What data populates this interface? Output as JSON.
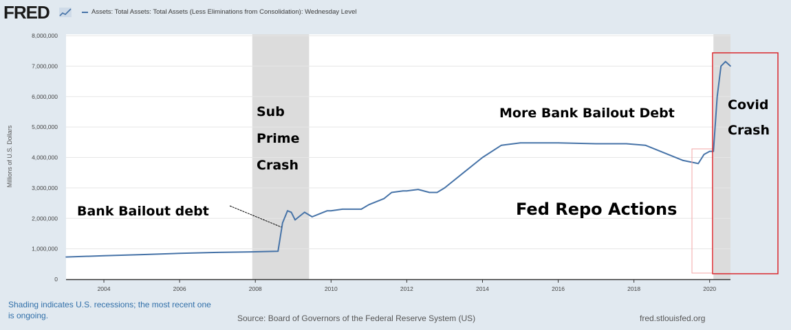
{
  "header": {
    "logo": "FRED",
    "legend_label": "Assets: Total Assets: Total Assets (Less Eliminations from Consolidation): Wednesday Level",
    "line_color": "#4572a7"
  },
  "footer": {
    "shading_note": "Shading indicates U.S. recessions; the most recent one is ongoing.",
    "source": "Source: Board of Governors of the Federal Reserve System (US)",
    "url": "fred.stlouisfed.org"
  },
  "annotations": {
    "bank_bailout": "Bank Bailout debt",
    "sub_prime": [
      "Sub",
      "Prime",
      "Crash"
    ],
    "more_bailout": "More Bank Bailout Debt",
    "covid": [
      "Covid",
      "Crash"
    ],
    "repo": "Fed Repo Actions"
  },
  "chart_data": {
    "type": "line",
    "ylabel": "Millions of U.S. Dollars",
    "ylim": [
      0,
      8000000
    ],
    "xlim": [
      2003.0,
      2020.55
    ],
    "y_ticks": [
      "0",
      "1,000,000",
      "2,000,000",
      "3,000,000",
      "4,000,000",
      "5,000,000",
      "6,000,000",
      "7,000,000",
      "8,000,000"
    ],
    "x_ticks": [
      "2004",
      "2006",
      "2008",
      "2010",
      "2012",
      "2014",
      "2016",
      "2018",
      "2020"
    ],
    "recessions": [
      [
        2007.92,
        2009.42
      ],
      [
        2020.1,
        2020.55
      ]
    ],
    "series": [
      {
        "color": "#4572a7",
        "x": [
          2003.0,
          2004.0,
          2005.0,
          2006.0,
          2007.0,
          2007.9,
          2008.6,
          2008.72,
          2008.85,
          2008.95,
          2009.05,
          2009.15,
          2009.3,
          2009.5,
          2009.7,
          2009.9,
          2010.0,
          2010.3,
          2010.8,
          2011.0,
          2011.4,
          2011.6,
          2011.9,
          2012.0,
          2012.3,
          2012.6,
          2012.8,
          2013.0,
          2013.5,
          2014.0,
          2014.5,
          2015.0,
          2016.0,
          2017.0,
          2017.8,
          2018.3,
          2018.8,
          2019.3,
          2019.7,
          2019.85,
          2020.0,
          2020.1,
          2020.2,
          2020.3,
          2020.42,
          2020.55
        ],
        "y": [
          730000,
          770000,
          810000,
          850000,
          880000,
          900000,
          920000,
          1850000,
          2250000,
          2200000,
          1950000,
          2050000,
          2200000,
          2050000,
          2150000,
          2250000,
          2250000,
          2300000,
          2300000,
          2450000,
          2650000,
          2850000,
          2900000,
          2900000,
          2950000,
          2850000,
          2850000,
          3000000,
          3500000,
          4000000,
          4400000,
          4480000,
          4480000,
          4450000,
          4450000,
          4400000,
          4150000,
          3900000,
          3800000,
          4100000,
          4200000,
          4200000,
          6000000,
          7000000,
          7150000,
          7000000
        ]
      }
    ]
  }
}
